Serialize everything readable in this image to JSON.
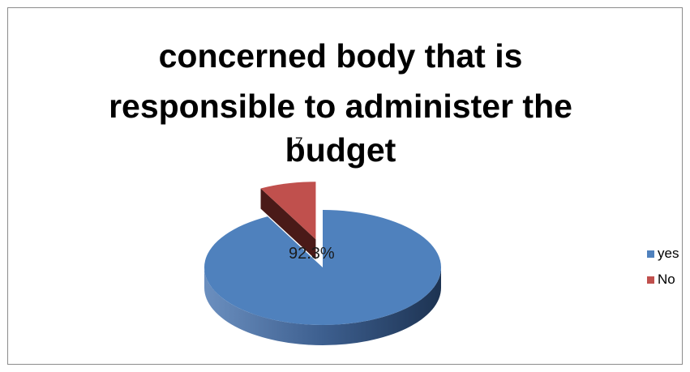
{
  "chart_data": {
    "type": "pie",
    "title": "concerned body that is responsible to administer the budget",
    "title_lines": [
      "concerned body that is",
      "responsible to administer the",
      "budget"
    ],
    "stray_label": "7",
    "slices": [
      {
        "label": "yes",
        "value": 92.3,
        "data_label": "92.3%",
        "color": "#4f81bd",
        "exploded": false
      },
      {
        "label": "No",
        "value": 7.7,
        "data_label": "",
        "color": "#c0504d",
        "exploded": true
      }
    ],
    "style": "3d",
    "legend_position": "right"
  }
}
